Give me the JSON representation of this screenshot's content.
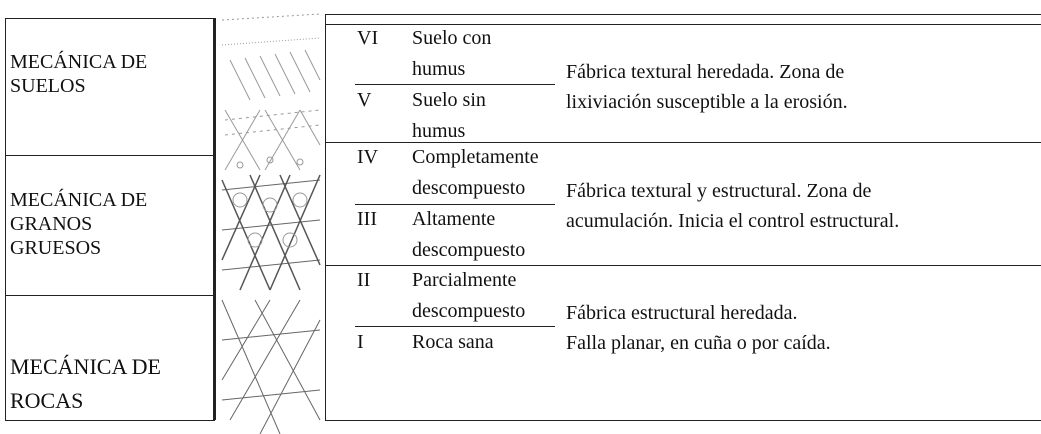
{
  "left_panels": [
    {
      "lines": [
        "MECÁNICA DE",
        "SUELOS"
      ]
    },
    {
      "lines": [
        "MECÁNICA DE",
        "GRANOS",
        "GRUESOS"
      ]
    },
    {
      "lines": [
        "MECÁNICA DE",
        "ROCAS"
      ]
    }
  ],
  "table": {
    "groups": [
      {
        "grades": [
          {
            "numeral": "VI",
            "lines": [
              "Suelo con",
              "humus"
            ]
          },
          {
            "numeral": "V",
            "lines": [
              "Suelo sin",
              "humus"
            ]
          }
        ],
        "description": [
          "Fábrica textural heredada. Zona de",
          "lixiviación susceptible a la erosión."
        ]
      },
      {
        "grades": [
          {
            "numeral": "IV",
            "lines": [
              "Completamente",
              "descompuesto"
            ]
          },
          {
            "numeral": "III",
            "lines": [
              "Altamente",
              "descompuesto"
            ]
          }
        ],
        "description": [
          "Fábrica textural y estructural. Zona de",
          "acumulación. Inicia el control estructural."
        ]
      },
      {
        "grades": [
          {
            "numeral": "II",
            "lines": [
              "Parcialmente",
              "descompuesto"
            ]
          },
          {
            "numeral": "I",
            "lines": [
              "Roca sana"
            ]
          }
        ],
        "description": [
          "Fábrica estructural heredada.",
          "Falla planar, en cuña o por caída."
        ]
      }
    ]
  }
}
